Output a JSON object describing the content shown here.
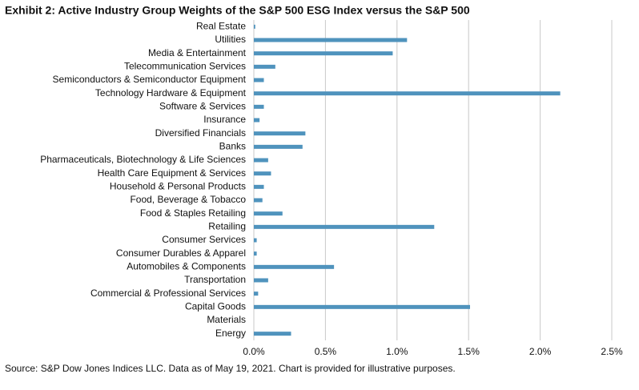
{
  "chart_data": {
    "type": "hbar",
    "title": "Exhibit 2: Active Industry Group Weights of the S&P 500 ESG Index versus the S&P 500",
    "note": "Source: S&P Dow Jones Indices LLC. Data as of May 19, 2021. Chart is provided for illustrative purposes.",
    "categories": [
      "Real Estate",
      "Utilities",
      "Media & Entertainment",
      "Telecommunication Services",
      "Semiconductors & Semiconductor Equipment",
      "Technology Hardware & Equipment",
      "Software & Services",
      "Insurance",
      "Diversified Financials",
      "Banks",
      "Pharmaceuticals, Biotechnology & Life Sciences",
      "Health Care Equipment & Services",
      "Household & Personal Products",
      "Food, Beverage & Tobacco",
      "Food & Staples Retailing",
      "Retailing",
      "Consumer Services",
      "Consumer Durables & Apparel",
      "Automobiles & Components",
      "Transportation",
      "Commercial  & Professional Services",
      "Capital Goods",
      "Materials",
      "Energy"
    ],
    "values": [
      0.01,
      1.07,
      0.97,
      0.15,
      0.07,
      2.14,
      0.07,
      0.04,
      0.36,
      0.34,
      0.1,
      0.12,
      0.07,
      0.06,
      0.2,
      1.26,
      0.02,
      0.02,
      0.56,
      0.1,
      0.03,
      1.51,
      0,
      0.26
    ],
    "color": "#4f93bd",
    "xlim": [
      0,
      2.5
    ],
    "xticks": [
      {
        "value": 0,
        "label": "0.0%"
      },
      {
        "value": 0.5,
        "label": "0.5%"
      },
      {
        "value": 1,
        "label": "1.0%"
      },
      {
        "value": 1.5,
        "label": "1.5%"
      },
      {
        "value": 2,
        "label": "2.0%"
      },
      {
        "value": 2.5,
        "label": "2.5%"
      }
    ],
    "grid": true
  }
}
